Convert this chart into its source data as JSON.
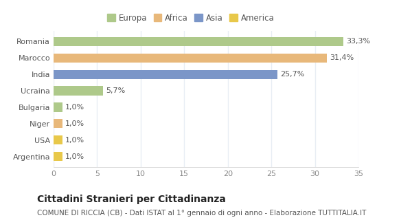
{
  "categories": [
    "Romania",
    "Marocco",
    "India",
    "Ucraina",
    "Bulgaria",
    "Niger",
    "USA",
    "Argentina"
  ],
  "values": [
    33.3,
    31.4,
    25.7,
    5.7,
    1.0,
    1.0,
    1.0,
    1.0
  ],
  "labels": [
    "33,3%",
    "31,4%",
    "25,7%",
    "5,7%",
    "1,0%",
    "1,0%",
    "1,0%",
    "1,0%"
  ],
  "colors": [
    "#aec98a",
    "#e8b87a",
    "#7b96c8",
    "#aec98a",
    "#aec98a",
    "#e8b87a",
    "#e8c84a",
    "#e8c84a"
  ],
  "legend_labels": [
    "Europa",
    "Africa",
    "Asia",
    "America"
  ],
  "legend_colors": [
    "#aec98a",
    "#e8b87a",
    "#7b96c8",
    "#e8c84a"
  ],
  "xlim": [
    0,
    35
  ],
  "xticks": [
    0,
    5,
    10,
    15,
    20,
    25,
    30,
    35
  ],
  "title": "Cittadini Stranieri per Cittadinanza",
  "subtitle": "COMUNE DI RICCIA (CB) - Dati ISTAT al 1° gennaio di ogni anno - Elaborazione TUTTITALIA.IT",
  "background_color": "#ffffff",
  "plot_bg_color": "#ffffff",
  "grid_color": "#e8eef4",
  "title_fontsize": 10,
  "subtitle_fontsize": 7.5,
  "label_fontsize": 8,
  "tick_fontsize": 8,
  "legend_fontsize": 8.5
}
